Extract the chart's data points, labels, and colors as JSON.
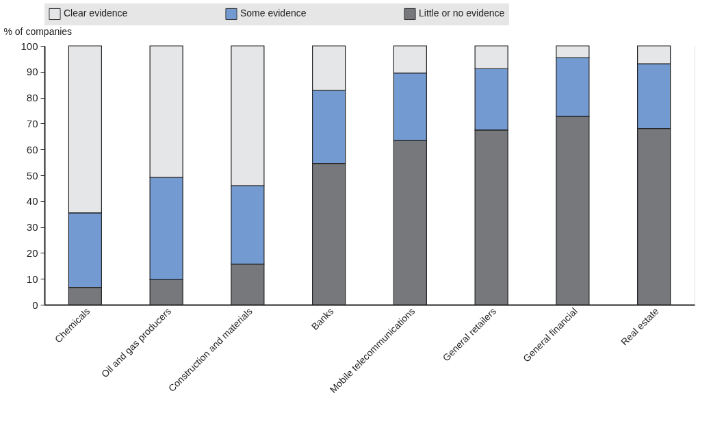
{
  "chart_data": {
    "type": "bar",
    "stacked": true,
    "ylabel": "% of companies",
    "categories": [
      "Chemicals",
      "Oil and gas producers",
      "Construction and materials",
      "Banks",
      "Mobile telecommunications",
      "General retailers",
      "General financial",
      "Real estate"
    ],
    "series": [
      {
        "name": "Little or no evidence",
        "color": "#77787c",
        "values": [
          6.7,
          9.7,
          15.7,
          54.6,
          63.4,
          67.5,
          72.8,
          68.1
        ]
      },
      {
        "name": "Some evidence",
        "color": "#739bd2",
        "values": [
          28.8,
          39.5,
          30.3,
          28.2,
          26.1,
          23.7,
          22.6,
          25.0
        ]
      },
      {
        "name": "Clear evidence",
        "color": "#e5e6e8",
        "values": [
          64.5,
          50.8,
          54.0,
          17.2,
          10.5,
          8.8,
          4.6,
          6.9
        ]
      }
    ],
    "ylim": [
      0,
      100
    ],
    "yticks": [
      0,
      10,
      20,
      30,
      40,
      50,
      60,
      70,
      80,
      90,
      100
    ],
    "grid": "y",
    "legend": "top"
  }
}
